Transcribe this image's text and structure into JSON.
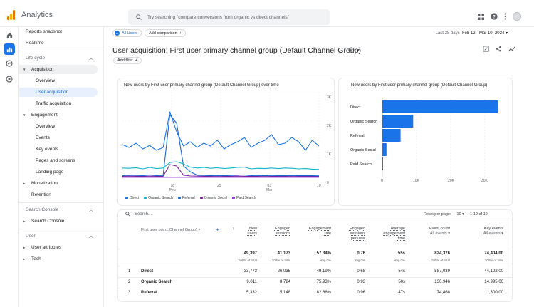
{
  "app": {
    "title": "Analytics"
  },
  "search": {
    "placeholder": "Try searching \"compare conversions from organic vs direct channels\""
  },
  "sidebar": {
    "reports_snapshot": "Reports snapshot",
    "realtime": "Realtime",
    "life_cycle": "Life cycle",
    "acquisition": "Acquisition",
    "overview": "Overview",
    "user_acquisition": "User acquisition",
    "traffic_acquisition": "Traffic acquisition",
    "engagement": "Engagement",
    "eng_overview": "Overview",
    "events": "Events",
    "key_events": "Key events",
    "pages_screens": "Pages and screens",
    "landing_page": "Landing page",
    "monetization": "Monetization",
    "retention": "Retention",
    "search_console_group": "Search Console",
    "search_console": "Search Console",
    "user_group": "User",
    "user_attributes": "User attributes",
    "tech": "Tech"
  },
  "header": {
    "all_users": "All Users",
    "add_comparison": "Add comparison",
    "date_prefix": "Last 28 days",
    "date_range": "Feb 12 - Mar 10, 2024",
    "page_title": "User acquisition: First user primary channel group (Default Channel Group)",
    "add_filter": "Add filter"
  },
  "line_chart": {
    "title": "New users by First user primary channel group (Default Channel Group) over time",
    "y_ticks": [
      "3K",
      "2K",
      "1K",
      "0"
    ],
    "x_ticks": [
      {
        "day": "18",
        "month": "Feb"
      },
      {
        "day": "25",
        "month": ""
      },
      {
        "day": "03",
        "month": "Mar"
      },
      {
        "day": "10",
        "month": ""
      }
    ],
    "legend": [
      "Direct",
      "Organic Search",
      "Referral",
      "Organic Social",
      "Paid Search"
    ]
  },
  "bar_chart": {
    "title": "New users by First user primary channel group (Default Channel Group)",
    "categories": [
      "Direct",
      "Organic Search",
      "Referral",
      "Organic Social",
      "Paid Search"
    ],
    "x_ticks": [
      "0",
      "10K",
      "20K",
      "30K"
    ]
  },
  "chart_data": [
    {
      "type": "line",
      "title": "New users by First user primary channel group (Default Channel Group) over time",
      "ylim": [
        0,
        3000
      ],
      "series": [
        {
          "name": "Direct",
          "color": "#1a73e8",
          "values": [
            1150,
            1050,
            1200,
            1000,
            1120,
            950,
            1050,
            2300,
            1600,
            1100,
            1250,
            1050,
            1200,
            1100,
            1300,
            1000,
            1150,
            1250,
            1400,
            1050,
            1200,
            1300,
            1500,
            1150,
            1200,
            1400,
            1250,
            950,
            1300,
            1100
          ]
        },
        {
          "name": "Organic Search",
          "color": "#12b5cb",
          "values": [
            330,
            320,
            340,
            300,
            350,
            310,
            330,
            520,
            550,
            470,
            360,
            330,
            350,
            320,
            340,
            310,
            330,
            350,
            360,
            300,
            320,
            310,
            330,
            310,
            330,
            320,
            300,
            310,
            290,
            280
          ]
        },
        {
          "name": "Referral",
          "color": "#1967d2",
          "values": [
            60,
            80,
            70,
            60,
            90,
            60,
            70,
            2200,
            1900,
            400,
            200,
            80,
            70,
            60,
            70,
            60,
            70,
            80,
            90,
            60,
            70,
            60,
            70,
            60,
            60,
            70,
            60,
            60,
            60,
            55
          ]
        },
        {
          "name": "Organic Social",
          "color": "#7b1fa2",
          "values": [
            40,
            45,
            40,
            35,
            45,
            40,
            40,
            450,
            400,
            80,
            50,
            45,
            40,
            40,
            45,
            40,
            40,
            45,
            40,
            40,
            40,
            45,
            40,
            40,
            40,
            45,
            40,
            40,
            40,
            40
          ]
        },
        {
          "name": "Paid Search",
          "color": "#9334e6",
          "values": [
            5,
            5,
            5,
            5,
            5,
            5,
            5,
            5,
            5,
            5,
            5,
            5,
            5,
            5,
            5,
            5,
            5,
            5,
            5,
            5,
            5,
            5,
            5,
            5,
            5,
            5,
            5,
            5,
            5,
            5
          ]
        }
      ]
    },
    {
      "type": "bar",
      "title": "New users by First user primary channel group (Default Channel Group)",
      "categories": [
        "Direct",
        "Organic Search",
        "Referral",
        "Organic Social",
        "Paid Search"
      ],
      "values": [
        33773,
        9011,
        5332,
        1200,
        100
      ],
      "xlim": [
        0,
        35000
      ]
    }
  ],
  "table": {
    "search_placeholder": "Search...",
    "rows_per_page_label": "Rows per page:",
    "rows_per_page": "10",
    "pagination": "1-10 of 10",
    "dimension_label": "First user prim...Channel Group)",
    "columns": [
      {
        "l1": "New",
        "l2": "users",
        "l3": "",
        "total": "49,397",
        "sub": "100% of total"
      },
      {
        "l1": "Engaged",
        "l2": "sessions",
        "l3": "",
        "total": "41,173",
        "sub": "100% of total"
      },
      {
        "l1": "Engagement",
        "l2": "rate",
        "l3": "",
        "total": "57.34%",
        "sub": "Avg 0%"
      },
      {
        "l1": "Engaged",
        "l2": "sessions",
        "l3": "per user",
        "total": "0.76",
        "sub": "Avg 0%"
      },
      {
        "l1": "Average",
        "l2": "engagement",
        "l3": "time",
        "total": "55s",
        "sub": "Avg 0%"
      },
      {
        "l1": "Event count",
        "l2": "All events",
        "l3": "",
        "total": "824,376",
        "sub": "100% of total"
      },
      {
        "l1": "Key events",
        "l2": "All events",
        "l3": "",
        "total": "74,404.00",
        "sub": "100% of total"
      }
    ],
    "rows": [
      {
        "idx": "1",
        "name": "Direct",
        "cells": [
          "33,773",
          "26,035",
          "49.19%",
          "0.68",
          "54s",
          "587,039",
          "44,102.00"
        ]
      },
      {
        "idx": "2",
        "name": "Organic Search",
        "cells": [
          "9,011",
          "8,724",
          "75.93%",
          "0.93",
          "50s",
          "130,946",
          "14,995.00"
        ]
      },
      {
        "idx": "3",
        "name": "Referral",
        "cells": [
          "5,332",
          "5,148",
          "82.66%",
          "0.96",
          "47s",
          "74,468",
          "11,300.00"
        ]
      }
    ]
  }
}
